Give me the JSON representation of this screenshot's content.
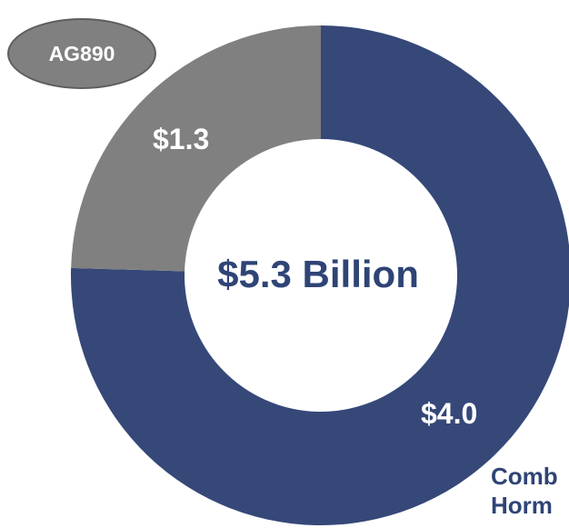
{
  "chart_data": {
    "type": "pie",
    "donut": true,
    "center_label": "$5.3 Billion",
    "slices": [
      {
        "label": "Comb Horm",
        "value": 4.0,
        "display": "$4.0",
        "color": "#354878"
      },
      {
        "label": "AG890",
        "value": 1.3,
        "display": "$1.3",
        "color": "#808080"
      }
    ]
  },
  "badge": {
    "label": "AG890"
  },
  "partial_label": {
    "line1": "Comb",
    "line2": "Horm"
  }
}
